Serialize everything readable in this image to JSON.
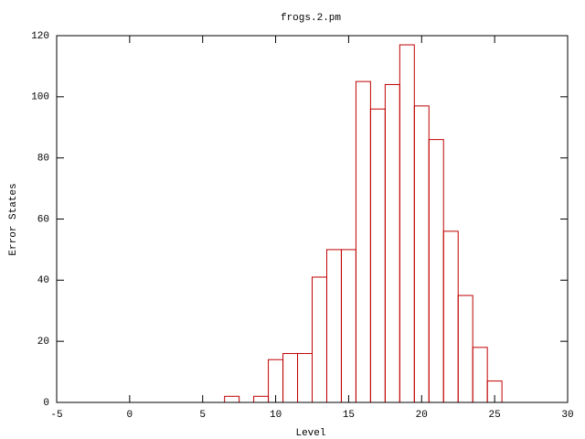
{
  "chart_data": {
    "type": "histogram",
    "title": "frogs.2.pm",
    "x_label": "Level",
    "y_label": "Error States",
    "bins": [
      6.5,
      7.5,
      8.5,
      9.5,
      10.5,
      11.5,
      12.5,
      13.5,
      14.5,
      15.5,
      16.5,
      17.5,
      18.5,
      19.5,
      20.5,
      21.5,
      22.5,
      23.5,
      24.5,
      25.5
    ],
    "values": [
      2,
      0,
      2,
      14,
      16,
      16,
      41,
      50,
      50,
      105,
      96,
      104,
      117,
      97,
      86,
      56,
      35,
      18,
      7
    ],
    "color": "#c00000",
    "xlim": [
      -5,
      30
    ],
    "xticks": [
      -5,
      0,
      5,
      10,
      15,
      20,
      25,
      30
    ],
    "ylim": [
      0,
      120
    ],
    "yticks": [
      0,
      20,
      40,
      60,
      80,
      100,
      120
    ]
  }
}
